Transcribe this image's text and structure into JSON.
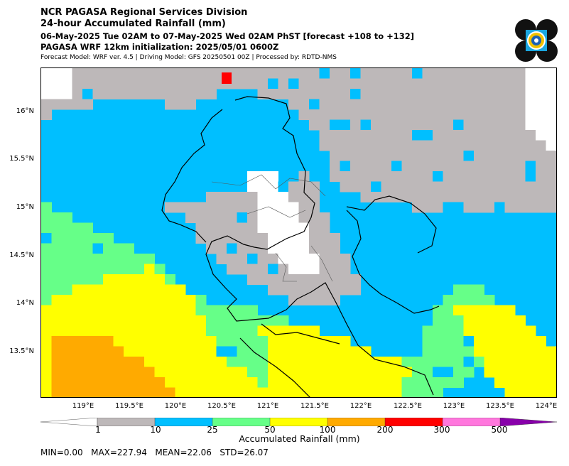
{
  "header": {
    "line1": "NCR PAGASA Regional Services Division",
    "line2": "24-hour Accumulated Rainfall (mm)",
    "line3": "06-May-2025 Tue 02AM to 07-May-2025 Wed 02AM PhST [forecast +108 to +132]",
    "line4": "PAGASA WRF 12km initialization: 2025/05/01 0600Z",
    "line5": "Forecast Model: WRF ver. 4.5 | Driving Model: GFS 20250501 00Z | Processed by: RDTD-NMS"
  },
  "map": {
    "lat_labels": [
      "16°N",
      "15.5°N",
      "15°N",
      "14.5°N",
      "14°N",
      "13.5°N"
    ],
    "lon_labels": [
      "119°E",
      "119.5°E",
      "120°E",
      "120.5°E",
      "121°E",
      "121.5°E",
      "122°E",
      "122.5°E",
      "123°E",
      "123.5°E",
      "124°E"
    ],
    "lat_range": [
      13.0,
      16.5
    ],
    "lon_range": [
      118.6,
      124.1
    ]
  },
  "colorbar": {
    "bins": [
      {
        "from": 0,
        "to": 1,
        "color": "#ffffff"
      },
      {
        "from": 1,
        "to": 10,
        "color": "#bdb8b9"
      },
      {
        "from": 10,
        "to": 25,
        "color": "#00bfff"
      },
      {
        "from": 25,
        "to": 50,
        "color": "#66ff88"
      },
      {
        "from": 50,
        "to": 100,
        "color": "#ffff00"
      },
      {
        "from": 100,
        "to": 200,
        "color": "#ffaa00"
      },
      {
        "from": 200,
        "to": 300,
        "color": "#ff0000"
      },
      {
        "from": 300,
        "to": 500,
        "color": "#ff77dd"
      },
      {
        "from": 500,
        "to": null,
        "color": "#8800aa"
      }
    ],
    "tick_labels": [
      "1",
      "10",
      "25",
      "50",
      "100",
      "200",
      "300",
      "500"
    ],
    "label": "Accumulated Rainfall (mm)"
  },
  "stats": "MIN=0.00   MAX=227.94   MEAN=22.06   STD=26.07",
  "colors": {
    "none": "#ffffff",
    "light": "#bdb8b9",
    "moderate": "#00bfff",
    "heavy": "#66ff88",
    "intense": "#ffff00",
    "torrential": "#ffaa00",
    "extreme": "#ff0000"
  },
  "logo_icon": "pagasa-seal-icon"
}
